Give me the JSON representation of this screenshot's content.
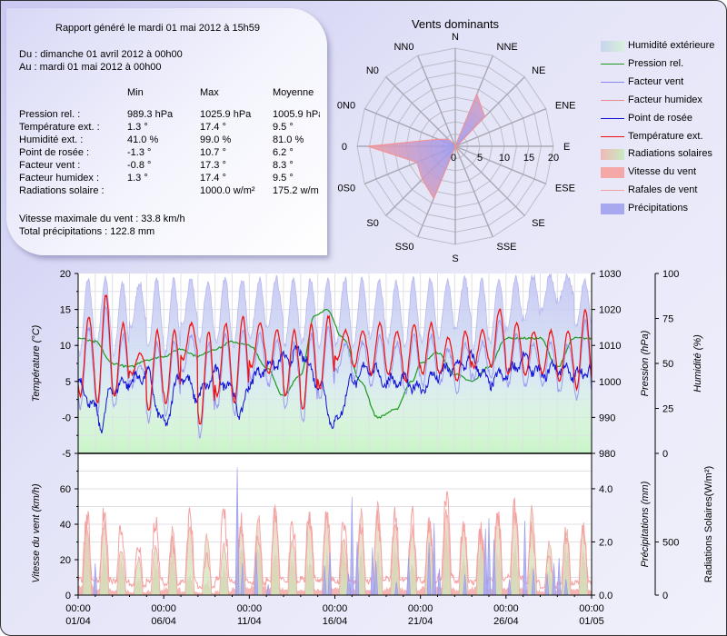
{
  "report": {
    "generated": "Rapport généré le mardi 01 mai 2012 à 15h59",
    "from": "Du : dimanche 01 avril 2012 à 00h00",
    "to": "Au : mardi 01 mai 2012 à 00h00",
    "columns": [
      "Min",
      "Max",
      "Moyenne"
    ],
    "rows": [
      {
        "label": "Pression rel. :",
        "min": "989.3 hPa",
        "max": "1025.9 hPa",
        "avg": "1005.9 hPa"
      },
      {
        "label": "Température ext. :",
        "min": "1.3 °",
        "max": "17.4 °",
        "avg": "9.5 °"
      },
      {
        "label": "Humidité ext. :",
        "min": "41.0 %",
        "max": "99.0 %",
        "avg": "81.0 %"
      },
      {
        "label": "Point de rosée :",
        "min": "-1.3 °",
        "max": "10.7 °",
        "avg": "6.2 °"
      },
      {
        "label": "Facteur vent :",
        "min": "-0.8 °",
        "max": "17.3 °",
        "avg": "8.3 °"
      },
      {
        "label": "Facteur humidex :",
        "min": "1.3 °",
        "max": "17.4 °",
        "avg": "9.5 °"
      },
      {
        "label": "Radiations solaire :",
        "min": "",
        "max": "1000.0 w/m²",
        "avg": "175.2 w/m"
      }
    ],
    "max_wind": "Vitesse maximale du vent : 33.8 km/h",
    "total_rain": "Total précipitations : 122.8 mm"
  },
  "legend": [
    {
      "label": "Humidité extérieure",
      "kind": "area",
      "color": "#c8d4f0",
      "color2": "#d8f0d8"
    },
    {
      "label": "Pression rel.",
      "kind": "line",
      "color": "#1a9a1a"
    },
    {
      "label": "Facteur vent",
      "kind": "line",
      "color": "#8888ee"
    },
    {
      "label": "Facteur humidex",
      "kind": "line",
      "color": "#f08a8a"
    },
    {
      "label": "Point de rosée",
      "kind": "line",
      "color": "#1010d8"
    },
    {
      "label": "Température ext.",
      "kind": "line",
      "color": "#ee1010"
    },
    {
      "label": "Radiations solaires",
      "kind": "area",
      "color": "#f0b8b8",
      "color2": "#c8ecc0"
    },
    {
      "label": "Vitesse du vent",
      "kind": "area",
      "color": "#f5a8a8",
      "color2": "#f5a8a8"
    },
    {
      "label": "Rafales de vent",
      "kind": "line",
      "color": "#f5a0a0"
    },
    {
      "label": "Précipitations",
      "kind": "area",
      "color": "#a8a8f0",
      "color2": "#a8a8f0"
    }
  ],
  "chart_data": [
    {
      "type": "radar",
      "title": "Vents dominants",
      "directions": [
        "N",
        "NNE",
        "NE",
        "ENE",
        "E",
        "ESE",
        "SE",
        "SSE",
        "S",
        "SS0",
        "S0",
        "0S0",
        "0",
        "0N0",
        "N0",
        "NN0"
      ],
      "values": [
        0,
        11.5,
        8.5,
        0.5,
        0,
        0.5,
        0,
        1.5,
        0,
        11.5,
        9.5,
        8.5,
        17.8,
        3.8,
        2,
        0.5
      ],
      "rlim": [
        0,
        20
      ],
      "radial_ticks": [
        "0",
        "5",
        "10",
        "15",
        "20"
      ],
      "colors": {
        "fill_outer": "#f59a9a",
        "fill_inner": "#9a9af5"
      }
    },
    {
      "type": "line",
      "title": "",
      "x_ticks": [
        {
          "time": "00:00",
          "date": "01/04",
          "day": 0
        },
        {
          "time": "00:00",
          "date": "06/04",
          "day": 5
        },
        {
          "time": "00:00",
          "date": "11/04",
          "day": 10
        },
        {
          "time": "00:00",
          "date": "16/04",
          "day": 15
        },
        {
          "time": "00:00",
          "date": "21/04",
          "day": 20
        },
        {
          "time": "00:00",
          "date": "26/04",
          "day": 25
        },
        {
          "time": "00:00",
          "date": "01/05",
          "day": 30
        }
      ],
      "xlim_days": [
        0,
        30
      ],
      "ylabel_left": "Température (°C)",
      "ylim_left": [
        -5,
        20
      ],
      "yticks_left": [
        "20",
        "15",
        "10",
        "5",
        "-0",
        "-5"
      ],
      "ylabel_right1": "Pression (hPa)",
      "ylim_right1": [
        980,
        1030
      ],
      "yticks_right1": [
        "1030",
        "1020",
        "1010",
        "1000",
        "990",
        "980"
      ],
      "ylabel_right2": "Humidité (%)",
      "ylim_right2": [
        0,
        100
      ],
      "yticks_right2": [
        "100",
        "75",
        "50",
        "25",
        "0"
      ],
      "series": [
        {
          "name": "Température ext.",
          "axis": "left",
          "color": "#ee1010",
          "daily_min": [
            3,
            2,
            3,
            6,
            1,
            2,
            8,
            -1,
            3,
            2,
            7,
            6,
            3,
            1,
            4,
            8,
            7,
            6,
            6,
            5,
            6,
            6,
            5,
            7,
            7,
            6,
            6,
            6,
            5,
            4
          ],
          "daily_max": [
            14,
            17,
            13,
            9,
            12,
            12,
            13,
            12,
            13,
            14,
            13,
            12,
            12,
            13,
            14,
            12,
            12,
            13,
            12,
            13,
            13,
            11,
            12,
            12,
            15,
            13,
            12,
            12,
            12,
            15
          ]
        },
        {
          "name": "Point de rosée",
          "axis": "left",
          "color": "#1010d8",
          "points_day_value": [
            [
              0,
              5
            ],
            [
              0.5,
              3
            ],
            [
              1,
              1
            ],
            [
              1.3,
              -1
            ],
            [
              2,
              4
            ],
            [
              3,
              5
            ],
            [
              4,
              6
            ],
            [
              5,
              -1
            ],
            [
              6,
              6
            ],
            [
              7,
              3
            ],
            [
              8,
              6
            ],
            [
              9,
              4
            ],
            [
              9.5,
              0
            ],
            [
              10,
              5
            ],
            [
              11,
              7
            ],
            [
              12,
              8
            ],
            [
              13,
              9
            ],
            [
              14,
              5
            ],
            [
              15,
              -1
            ],
            [
              16,
              5
            ],
            [
              17,
              7
            ],
            [
              18,
              5
            ],
            [
              19,
              5
            ],
            [
              20,
              4
            ],
            [
              21,
              6
            ],
            [
              22,
              7
            ],
            [
              23,
              8
            ],
            [
              24,
              5
            ],
            [
              25,
              6
            ],
            [
              26,
              8
            ],
            [
              27,
              6
            ],
            [
              28,
              7
            ],
            [
              29,
              6
            ],
            [
              30,
              6.5
            ]
          ]
        },
        {
          "name": "Pression rel.",
          "axis": "right1",
          "color": "#1a9a1a",
          "points_day_value": [
            [
              0,
              1012
            ],
            [
              1,
              1011
            ],
            [
              2,
              1005
            ],
            [
              3,
              1004
            ],
            [
              4,
              1006
            ],
            [
              5,
              1007
            ],
            [
              6,
              1009
            ],
            [
              7,
              1007
            ],
            [
              8,
              1009
            ],
            [
              9,
              1011
            ],
            [
              10,
              1010
            ],
            [
              11,
              1004
            ],
            [
              12,
              996
            ],
            [
              13,
              1002
            ],
            [
              13.8,
              1018
            ],
            [
              14.5,
              1020
            ],
            [
              15.5,
              1012
            ],
            [
              16.5,
              1000
            ],
            [
              17.5,
              990
            ],
            [
              18.5,
              992
            ],
            [
              19.5,
              1000
            ],
            [
              20,
              1005
            ],
            [
              21,
              1008
            ],
            [
              22,
              1002
            ],
            [
              23,
              1000
            ],
            [
              24,
              1004
            ],
            [
              25,
              1012
            ],
            [
              26,
              1012
            ],
            [
              27,
              1012
            ],
            [
              28,
              1004
            ],
            [
              29,
              1012
            ],
            [
              30,
              1012
            ]
          ]
        },
        {
          "name": "Humidité extérieure",
          "axis": "right2",
          "color": "#c8d4f0",
          "daily_min": [
            55,
            60,
            55,
            70,
            58,
            55,
            70,
            62,
            62,
            60,
            65,
            70,
            60,
            62,
            58,
            60,
            60,
            65,
            62,
            58,
            62,
            65,
            70,
            58,
            62,
            70,
            75,
            80,
            85,
            70
          ],
          "daily_max": [
            97,
            97,
            95,
            95,
            97,
            97,
            97,
            95,
            97,
            97,
            97,
            97,
            97,
            97,
            97,
            97,
            97,
            97,
            95,
            97,
            97,
            97,
            97,
            97,
            97,
            97,
            99,
            99,
            99,
            97
          ]
        }
      ]
    },
    {
      "type": "area",
      "title": "",
      "ylabel_left": "Vitesse du vent (km/h)",
      "ylim_left": [
        0,
        80
      ],
      "yticks_left": [
        "60",
        "40",
        "20",
        "0"
      ],
      "ylabel_right1": "Précipitations (mm)",
      "ylim_right1": [
        0,
        5.33
      ],
      "yticks_right1": [
        "4.0",
        "2.0",
        "0.0"
      ],
      "ylabel_right2": "Radiations Solaires(W/m²)",
      "ylim_right2": [
        0,
        1333
      ],
      "yticks_right2": [
        "500",
        "0"
      ],
      "series": [
        {
          "name": "Radiations solaires",
          "axis": "right2",
          "color": "#c8ecc0",
          "daily_peak": [
            730,
            760,
            500,
            390,
            520,
            730,
            700,
            660,
            530,
            730,
            860,
            930,
            600,
            830,
            800,
            620,
            900,
            1000,
            780,
            700,
            830,
            860,
            760,
            730,
            880,
            960,
            900,
            560,
            700,
            750
          ]
        },
        {
          "name": "Vitesse du vent",
          "axis": "left",
          "color": "#f5a8a8",
          "daily_peak": [
            40,
            28,
            22,
            12,
            20,
            30,
            15,
            10,
            18,
            34,
            40,
            30,
            22,
            24,
            28,
            30,
            26,
            25,
            32,
            22,
            36,
            38,
            24,
            35,
            30,
            32,
            24,
            18,
            30,
            26
          ]
        },
        {
          "name": "Rafales de vent",
          "axis": "left",
          "color": "#f5a0a0",
          "daily_peak": [
            58,
            60,
            52,
            36,
            55,
            40,
            56,
            30,
            62,
            52,
            46,
            58,
            54,
            62,
            60,
            52,
            50,
            56,
            60,
            58,
            52,
            70,
            54,
            48,
            60,
            66,
            50,
            28,
            46,
            48
          ]
        },
        {
          "name": "Précipitations",
          "axis": "right1",
          "color": "#a8a8f0",
          "events_day_mm": [
            [
              1.0,
              1.2
            ],
            [
              9.3,
              4.8
            ],
            [
              9.6,
              1.2
            ],
            [
              10.4,
              1.6
            ],
            [
              11.1,
              0.4
            ],
            [
              14.4,
              1.1
            ],
            [
              14.7,
              1.6
            ],
            [
              15.8,
              0.8
            ],
            [
              16.0,
              3.7
            ],
            [
              16.3,
              2.0
            ],
            [
              17.2,
              1.8
            ],
            [
              17.4,
              1.3
            ],
            [
              18.6,
              0.5
            ],
            [
              19.3,
              1.4
            ],
            [
              20.5,
              2.0
            ],
            [
              20.8,
              2.7
            ],
            [
              21.1,
              1.0
            ],
            [
              22.6,
              0.8
            ],
            [
              23.8,
              2.5
            ],
            [
              24.0,
              2.9
            ],
            [
              24.3,
              2.1
            ],
            [
              25.2,
              0.6
            ],
            [
              26.1,
              2.8
            ],
            [
              26.6,
              1.0
            ],
            [
              27.4,
              0.8
            ],
            [
              27.8,
              1.2
            ],
            [
              28.1,
              1.4
            ],
            [
              28.5,
              0.6
            ]
          ]
        }
      ]
    }
  ]
}
